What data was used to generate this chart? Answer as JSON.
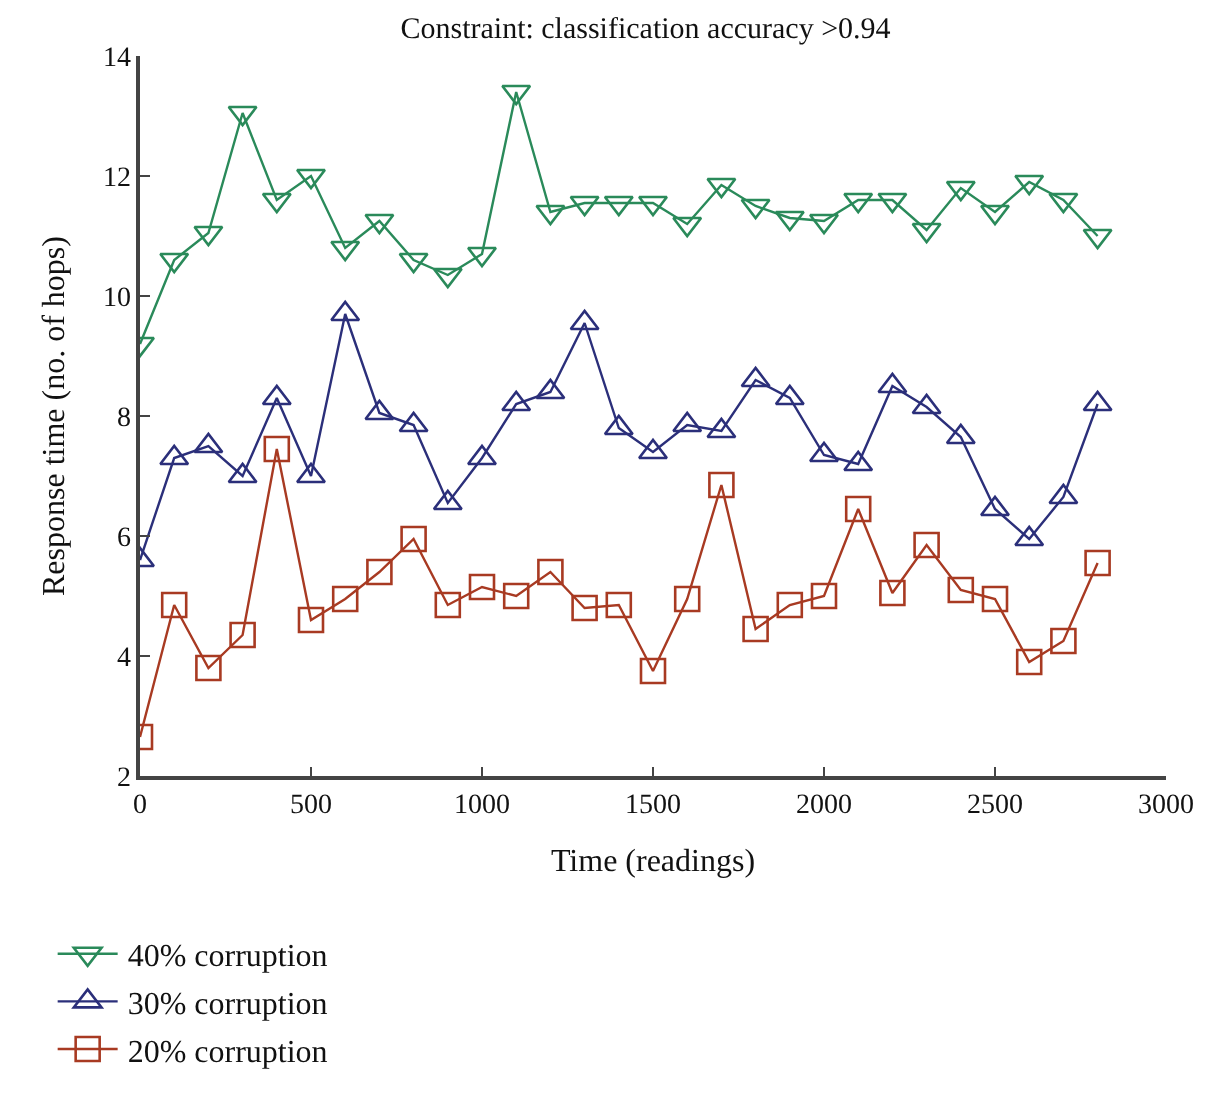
{
  "chart_data": {
    "type": "line",
    "title": "Constraint: classification accuracy >0.94",
    "xlabel": "Time (readings)",
    "ylabel": "Response time (no. of hops)",
    "x": [
      0,
      100,
      200,
      300,
      400,
      500,
      600,
      700,
      800,
      900,
      1000,
      1100,
      1200,
      1300,
      1400,
      1500,
      1600,
      1700,
      1800,
      1900,
      2000,
      2100,
      2200,
      2300,
      2400,
      2500,
      2600,
      2700,
      2800
    ],
    "series": [
      {
        "name": "40% corruption",
        "color": "#2a8a5a",
        "marker": "triangle-down",
        "values": [
          9.2,
          10.6,
          11.05,
          13.05,
          11.6,
          12.0,
          10.8,
          11.25,
          10.6,
          10.35,
          10.7,
          13.4,
          11.4,
          11.55,
          11.55,
          11.55,
          11.2,
          11.85,
          11.5,
          11.3,
          11.25,
          11.6,
          11.6,
          11.1,
          11.8,
          11.4,
          11.9,
          11.6,
          11.0
        ]
      },
      {
        "name": "30% corruption",
        "color": "#2b2f7a",
        "marker": "triangle",
        "values": [
          5.6,
          7.3,
          7.5,
          7.0,
          8.3,
          7.0,
          9.7,
          8.05,
          7.85,
          6.55,
          7.3,
          8.2,
          8.4,
          9.55,
          7.8,
          7.4,
          7.85,
          7.75,
          8.6,
          8.3,
          7.35,
          7.2,
          8.5,
          8.15,
          7.65,
          6.45,
          5.95,
          6.65,
          8.2
        ]
      },
      {
        "name": "20% corruption",
        "color": "#a83a22",
        "marker": "square",
        "values": [
          2.65,
          4.85,
          3.8,
          4.35,
          7.45,
          4.6,
          4.95,
          5.4,
          5.95,
          4.85,
          5.15,
          5.0,
          5.4,
          4.8,
          4.85,
          3.75,
          4.95,
          6.85,
          4.45,
          4.85,
          5.0,
          6.45,
          5.05,
          5.85,
          5.1,
          4.95,
          3.9,
          4.25,
          5.55
        ]
      }
    ],
    "xlim": [
      0,
      3000
    ],
    "xticks": [
      0,
      500,
      1000,
      1500,
      2000,
      2500,
      3000
    ],
    "ylim": [
      2,
      14
    ],
    "yticks": [
      2,
      4,
      6,
      8,
      10,
      12,
      14
    ],
    "legend": "bottom left",
    "line_style": "solid"
  }
}
